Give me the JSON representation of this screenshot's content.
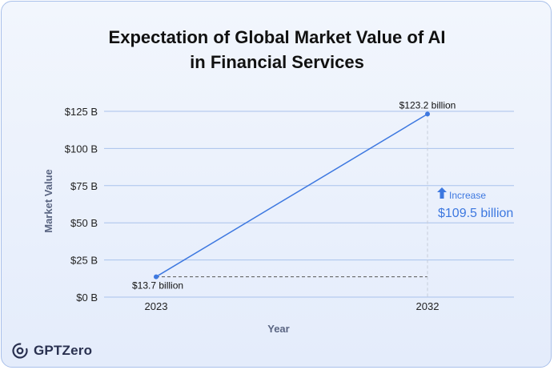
{
  "chart_data": {
    "type": "line",
    "title_lines": [
      "Expectation of Global Market Value of AI",
      "in Financial Services"
    ],
    "xlabel": "Year",
    "ylabel": "Market Value",
    "x": [
      2023,
      2032
    ],
    "x_tick_labels": [
      "2023",
      "2032"
    ],
    "series": [
      {
        "name": "Market Value",
        "values": [
          13.7,
          123.2
        ]
      }
    ],
    "ylim": [
      0,
      125
    ],
    "y_ticks": [
      0,
      25,
      50,
      75,
      100,
      125
    ],
    "y_tick_labels": [
      "$0 B",
      "$25 B",
      "$50 B",
      "$75 B",
      "$100 B",
      "$125 B"
    ],
    "grid": true,
    "data_labels": [
      "$13.7 billion",
      "$123.2 billion"
    ],
    "annotation": {
      "label": "Increase",
      "value_text": "$109.5 billion",
      "value": 109.5
    },
    "colors": {
      "line": "#3d78e0",
      "grid": "#a9c2ec",
      "accent": "#3d78e0",
      "title": "#111111",
      "axis_label": "#5a6582",
      "guide": "#555555"
    }
  },
  "brand": {
    "name": "GPTZero",
    "icon": "gptzero-logo-icon"
  }
}
